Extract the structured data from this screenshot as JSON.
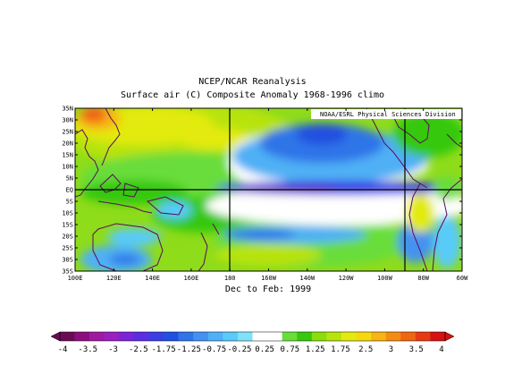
{
  "title": "NCEP/NCAR Reanalysis",
  "subtitle": "Surface air (C) Composite Anomaly 1968-1996 climo",
  "credit": "NOAA/ESRL Physical Sciences Division",
  "period": "Dec to Feb: 1999",
  "lat_labels": [
    "35N",
    "30N",
    "25N",
    "20N",
    "15N",
    "10N",
    "5N",
    "EQ",
    "5S",
    "10S",
    "15S",
    "20S",
    "25S",
    "30S",
    "35S"
  ],
  "lon_labels": [
    "100E",
    "120E",
    "140E",
    "160E",
    "180",
    "160W",
    "140W",
    "120W",
    "100W",
    "80W",
    "60W"
  ],
  "colorbar": {
    "labels": [
      "-4",
      "-3.5",
      "-3",
      "-2.5",
      "-1.75",
      "-1.25",
      "-0.75",
      "-0.25",
      "0.25",
      "0.75",
      "1.25",
      "1.75",
      "2.5",
      "3",
      "3.5",
      "4"
    ],
    "colors": [
      "#6a0a55",
      "#8a0f7c",
      "#a01aa0",
      "#9a1fc0",
      "#7a23d8",
      "#5a2ee0",
      "#3a3ee6",
      "#2050e0",
      "#2f74e8",
      "#4492f0",
      "#4fb0f5",
      "#58cbf8",
      "#7fe2fb",
      "#ffffff",
      "#ffffff",
      "#69dd3a",
      "#36c80e",
      "#8bdd0c",
      "#b8e30d",
      "#e3ea10",
      "#f5d810",
      "#f7b413",
      "#f58c12",
      "#f06412",
      "#e63a12",
      "#d61212"
    ]
  }
}
